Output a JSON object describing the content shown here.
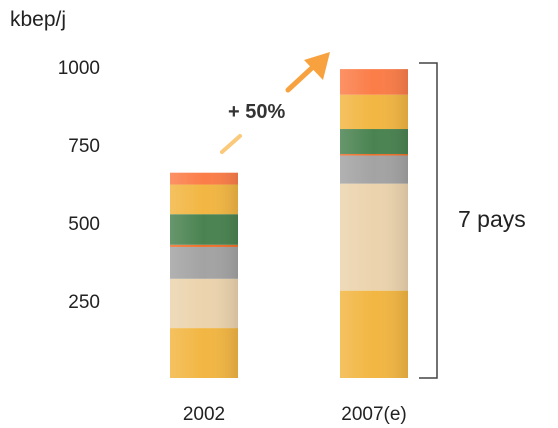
{
  "chart_data": {
    "type": "bar",
    "stacked": true,
    "unit": "kbep/j",
    "categories": [
      "2002",
      "2007(e)"
    ],
    "y_ticks": [
      "250",
      "500",
      "750",
      "1000"
    ],
    "ylim": [
      0,
      1000
    ],
    "segment_colors": [
      "#f2b642",
      "#ebd3ad",
      "#a3a3a3",
      "#ef6f2a",
      "#4a8351",
      "#f2b642",
      "#fb7d48"
    ],
    "stacks": [
      [
        160,
        158,
        102,
        7,
        98,
        95,
        38
      ],
      [
        280,
        343,
        90,
        5,
        80,
        110,
        82
      ]
    ],
    "annotations": {
      "growth": "+ 50%",
      "countries": "7 pays"
    }
  }
}
